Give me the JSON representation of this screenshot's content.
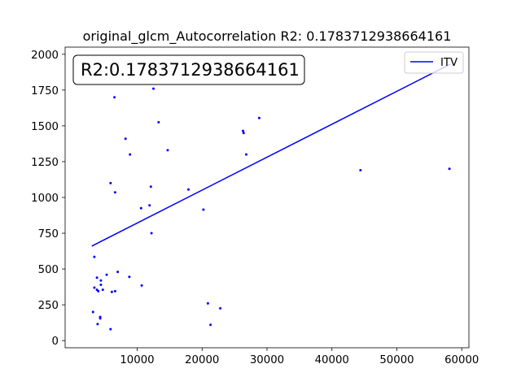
{
  "chart_data": {
    "type": "scatter",
    "title": "original_glcm_Autocorrelation R2: 0.1783712938664161",
    "xlabel": "",
    "ylabel": "",
    "xlim": [
      -1100,
      61100
    ],
    "ylim": [
      -50,
      2050
    ],
    "x_ticks": [
      10000,
      20000,
      30000,
      40000,
      50000,
      60000
    ],
    "x_tick_labels": [
      "10000",
      "20000",
      "30000",
      "40000",
      "50000",
      "60000"
    ],
    "y_ticks": [
      0,
      250,
      500,
      750,
      1000,
      1250,
      1500,
      1750,
      2000
    ],
    "y_tick_labels": [
      "0",
      "250",
      "500",
      "750",
      "1000",
      "1250",
      "1500",
      "1750",
      "2000"
    ],
    "annotation": "R2:0.1783712938664161",
    "legend": {
      "position": "top-right",
      "entries": [
        "ITV"
      ]
    },
    "grid": false,
    "colors": {
      "points": "#0000ff",
      "line": "#0000ff"
    },
    "series": [
      {
        "kind": "points",
        "points": [
          [
            6500,
            1700
          ],
          [
            12500,
            1760
          ],
          [
            8200,
            1410
          ],
          [
            13300,
            1525
          ],
          [
            8900,
            1300
          ],
          [
            14700,
            1330
          ],
          [
            5900,
            1100
          ],
          [
            6600,
            1035
          ],
          [
            12100,
            1075
          ],
          [
            11900,
            945
          ],
          [
            10600,
            925
          ],
          [
            17900,
            1055
          ],
          [
            20200,
            915
          ],
          [
            12200,
            750
          ],
          [
            26300,
            1465
          ],
          [
            26400,
            1450
          ],
          [
            28800,
            1555
          ],
          [
            26800,
            1300
          ],
          [
            44400,
            1190
          ],
          [
            58100,
            1200
          ],
          [
            3400,
            585
          ],
          [
            7000,
            480
          ],
          [
            5300,
            460
          ],
          [
            8800,
            445
          ],
          [
            3800,
            440
          ],
          [
            4400,
            420
          ],
          [
            4400,
            390
          ],
          [
            3400,
            370
          ],
          [
            3800,
            355
          ],
          [
            4000,
            345
          ],
          [
            4700,
            355
          ],
          [
            6100,
            340
          ],
          [
            6600,
            345
          ],
          [
            10700,
            385
          ],
          [
            3200,
            200
          ],
          [
            4300,
            165
          ],
          [
            4300,
            155
          ],
          [
            3900,
            115
          ],
          [
            5900,
            80
          ],
          [
            20900,
            260
          ],
          [
            21300,
            110
          ],
          [
            22800,
            225
          ]
        ]
      },
      {
        "kind": "line",
        "name": "ITV",
        "points": [
          [
            3000,
            660
          ],
          [
            58200,
            1930
          ]
        ]
      }
    ]
  }
}
